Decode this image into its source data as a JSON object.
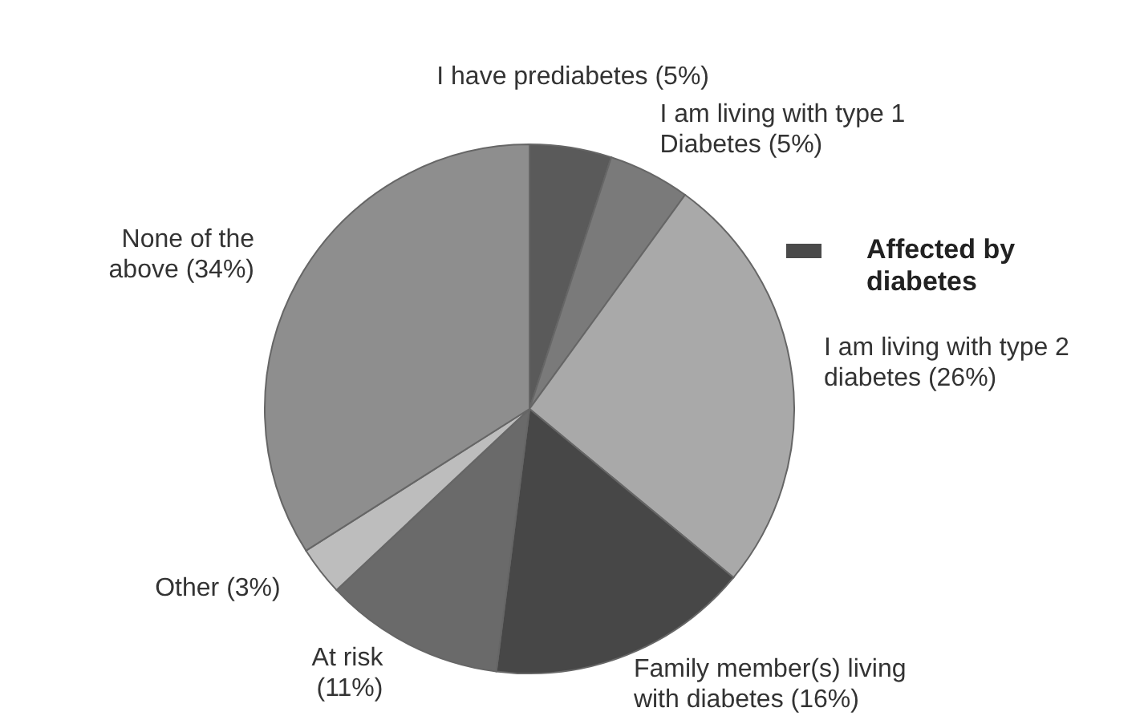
{
  "chart_data": {
    "type": "pie",
    "legend_title": "Affected by diabetes",
    "categories": [
      "I have prediabetes",
      "I am living with type 1 Diabetes",
      "I am living with type 2 diabetes",
      "Family member(s) living with diabetes",
      "At risk",
      "Other",
      "None of the above"
    ],
    "values": [
      5,
      5,
      26,
      16,
      11,
      3,
      34
    ],
    "colors": [
      "#5a5a5a",
      "#7a7a7a",
      "#a9a9a9",
      "#474747",
      "#6a6a6a",
      "#bdbdbd",
      "#8e8e8e"
    ],
    "value_labels": [
      "(5%)",
      "(5%)",
      "(26%)",
      "(16%)",
      "(11%)",
      "(3%)",
      "(34%)"
    ]
  }
}
